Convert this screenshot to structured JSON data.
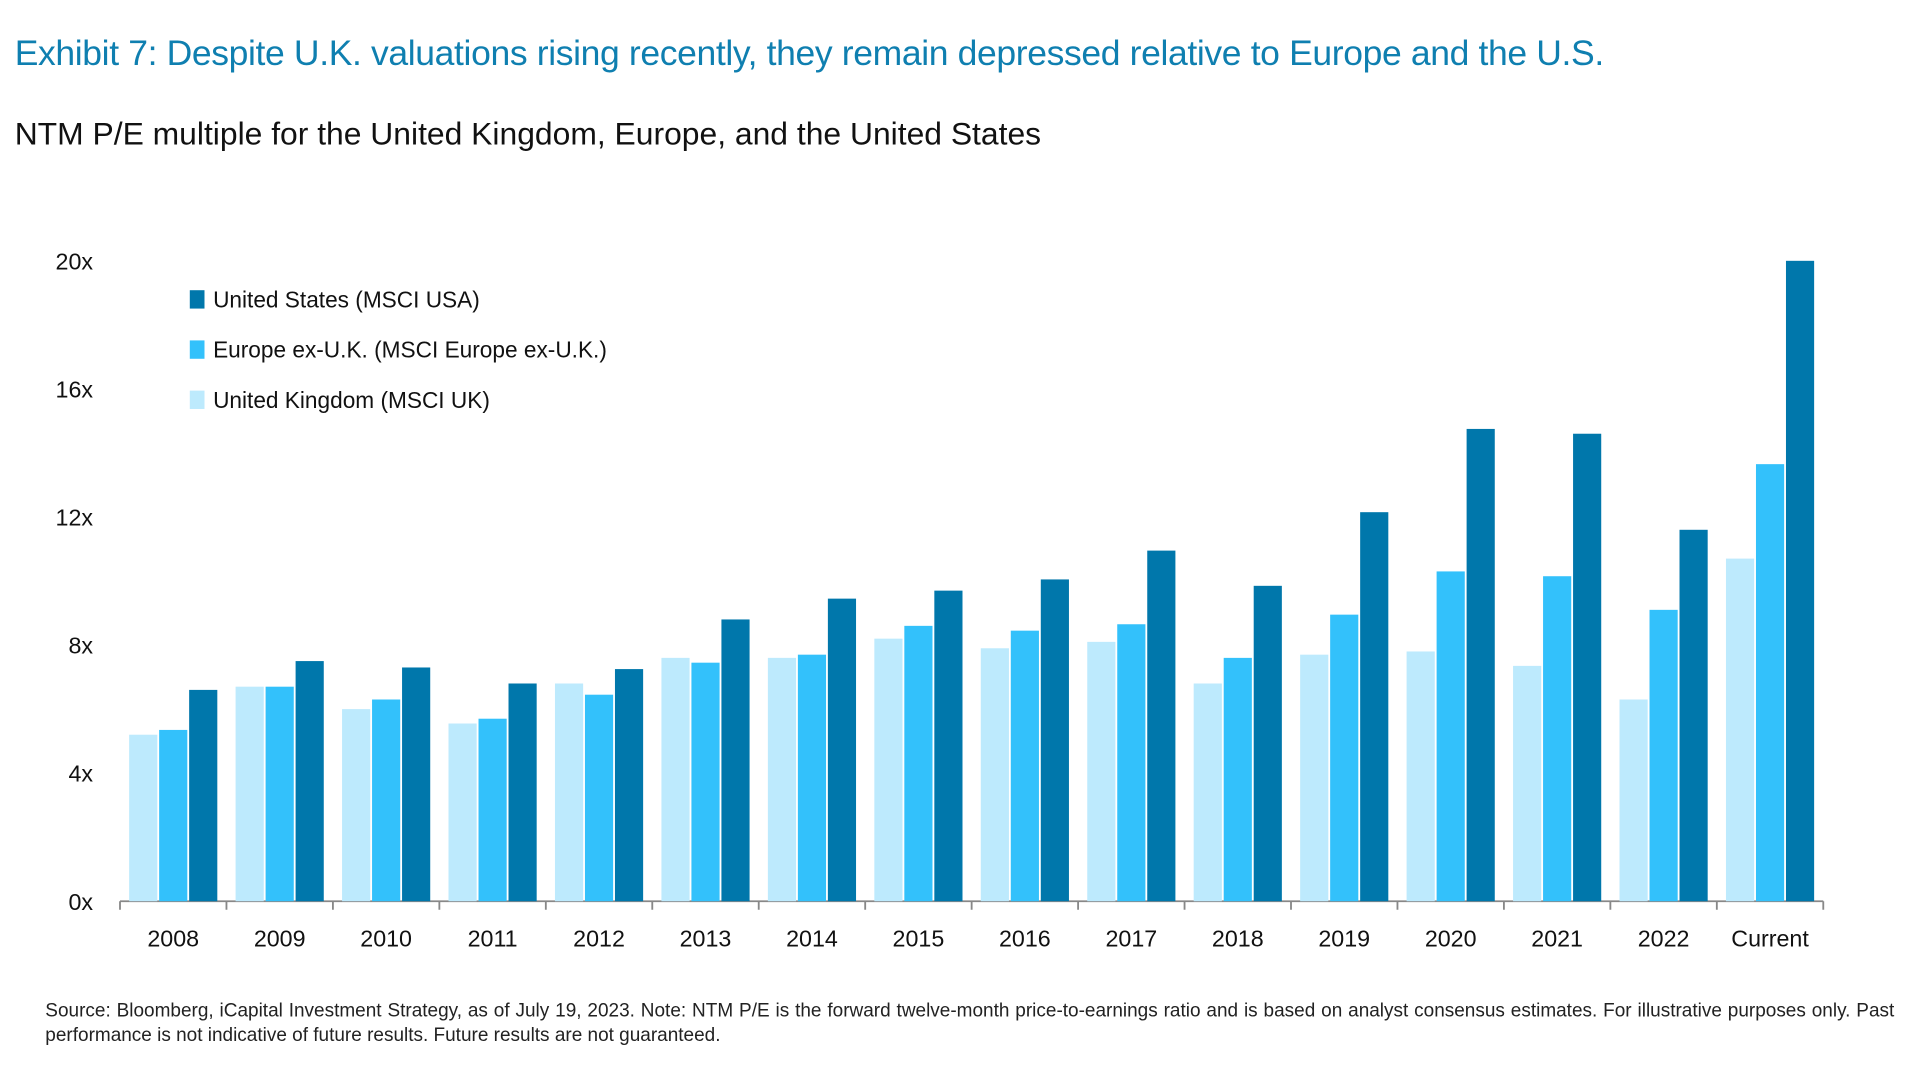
{
  "title": "Exhibit 7: Despite U.K. valuations rising recently, they remain depressed relative to Europe and the U.S.",
  "subtitle": "NTM P/E multiple for the United Kingdom, Europe, and the United States",
  "note": "Source: Bloomberg, iCapital Investment Strategy, as of July 19, 2023. Note: NTM P/E is the forward twelve-month price-to-earnings ratio and is based on analyst consensus estimates. For illustrative purposes only. Past performance is not indicative of future results. Future results are not guaranteed.",
  "chart_data": {
    "type": "bar",
    "categories": [
      "2008",
      "2009",
      "2010",
      "2011",
      "2012",
      "2013",
      "2014",
      "2015",
      "2016",
      "2017",
      "2018",
      "2019",
      "2020",
      "2021",
      "2022",
      "Current"
    ],
    "series": [
      {
        "name": "United Kingdom (MSCI UK)",
        "color": "#bdeafd",
        "values": [
          5.2,
          6.7,
          6.0,
          5.55,
          6.8,
          7.6,
          7.6,
          8.2,
          7.9,
          8.1,
          6.8,
          7.7,
          7.8,
          7.35,
          6.3,
          10.7
        ]
      },
      {
        "name": "Europe ex-U.K. (MSCI Europe ex-U.K.)",
        "color": "#33c1fb",
        "values": [
          5.35,
          6.7,
          6.3,
          5.7,
          6.45,
          7.45,
          7.7,
          8.6,
          8.45,
          8.65,
          7.6,
          8.95,
          10.3,
          10.15,
          9.1,
          13.65
        ]
      },
      {
        "name": "United States (MSCI USA)",
        "color": "#0077ab",
        "values": [
          6.6,
          7.5,
          7.3,
          6.8,
          7.25,
          8.8,
          9.45,
          9.7,
          10.05,
          10.95,
          9.85,
          12.15,
          14.75,
          14.6,
          11.6,
          20.0
        ]
      }
    ],
    "legend_order": [
      2,
      1,
      0
    ],
    "legend_position": "top-left",
    "yticks": [
      "0x",
      "4x",
      "8x",
      "12x",
      "16x",
      "20x"
    ],
    "ylim": [
      0,
      20
    ],
    "grid": false,
    "xlabel": "",
    "ylabel": ""
  }
}
